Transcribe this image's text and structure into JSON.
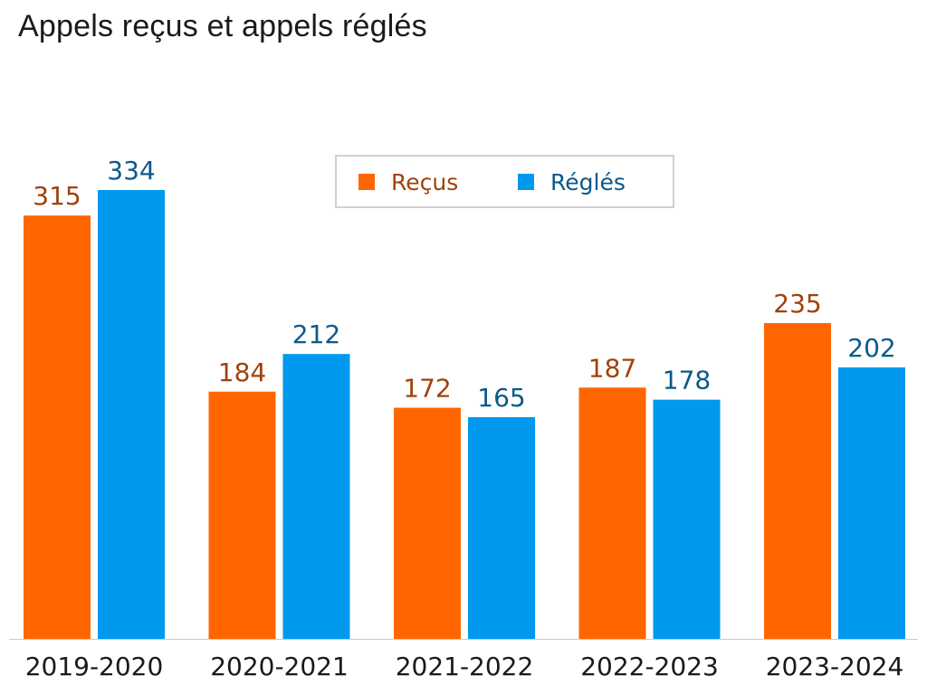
{
  "chart_data": {
    "type": "bar",
    "title": "Appels reçus et appels réglés",
    "categories": [
      "2019-2020",
      "2020-2021",
      "2021-2022",
      "2022-2023",
      "2023-2024"
    ],
    "series": [
      {
        "name": "Reçus",
        "values": [
          315,
          184,
          172,
          187,
          235
        ],
        "color": "#ff6600",
        "label_color": "#a0420a"
      },
      {
        "name": "Réglés",
        "values": [
          334,
          212,
          165,
          178,
          202
        ],
        "color": "#0099ee",
        "label_color": "#0a5a8a"
      }
    ],
    "xlabel": "",
    "ylabel": "",
    "ylim": [
      0,
      334
    ],
    "grid": false,
    "legend": "top-center"
  }
}
